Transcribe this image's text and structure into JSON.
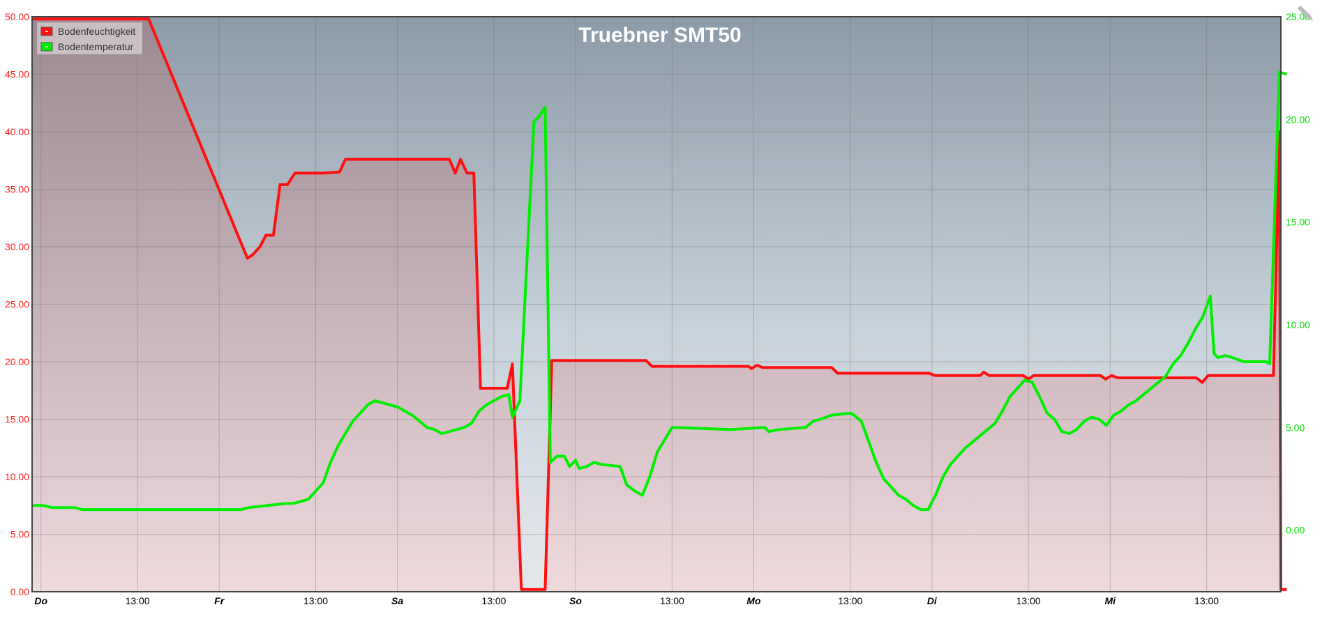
{
  "chart_data": {
    "type": "line",
    "title": "Truebner SMT50",
    "x_ticks": [
      {
        "t": 0,
        "label": "Do",
        "day": true
      },
      {
        "t": 13,
        "label": "13:00",
        "day": false
      },
      {
        "t": 24,
        "label": "Fr",
        "day": true
      },
      {
        "t": 37,
        "label": "13:00",
        "day": false
      },
      {
        "t": 48,
        "label": "Sa",
        "day": true
      },
      {
        "t": 61,
        "label": "13:00",
        "day": false
      },
      {
        "t": 72,
        "label": "So",
        "day": true
      },
      {
        "t": 85,
        "label": "13:00",
        "day": false
      },
      {
        "t": 96,
        "label": "Mo",
        "day": true
      },
      {
        "t": 109,
        "label": "13:00",
        "day": false
      },
      {
        "t": 120,
        "label": "Di",
        "day": true
      },
      {
        "t": 133,
        "label": "13:00",
        "day": false
      },
      {
        "t": 144,
        "label": "Mi",
        "day": true
      },
      {
        "t": 157,
        "label": "13:00",
        "day": false
      }
    ],
    "x_range_hours": [
      -1.2,
      167
    ],
    "y_left": {
      "range": [
        0,
        50
      ],
      "ticks": [
        "0.00",
        "5.00",
        "10.00",
        "15.00",
        "20.00",
        "25.00",
        "30.00",
        "35.00",
        "40.00",
        "45.00",
        "50.00"
      ],
      "color": "#ff2020"
    },
    "y_right": {
      "range": [
        -3,
        25
      ],
      "ticks": [
        "0.00",
        "5.00",
        "10.00",
        "15.00",
        "20.00",
        "25.00"
      ],
      "color": "#00e000"
    },
    "grid": true,
    "legend_position": "top-left",
    "series": [
      {
        "name": "Bodenfeuchtigkeit",
        "axis": "left",
        "color": "#ff1010",
        "points": [
          [
            -1.2,
            49.8
          ],
          [
            14.5,
            49.8
          ],
          [
            27.8,
            29.0
          ],
          [
            28.5,
            29.3
          ],
          [
            29.5,
            30.0
          ],
          [
            30.3,
            31.0
          ],
          [
            31.3,
            31.0
          ],
          [
            32.2,
            35.4
          ],
          [
            33.2,
            35.4
          ],
          [
            34.2,
            36.4
          ],
          [
            38.0,
            36.4
          ],
          [
            40.2,
            36.5
          ],
          [
            41.0,
            37.6
          ],
          [
            55.0,
            37.6
          ],
          [
            55.8,
            36.4
          ],
          [
            56.5,
            37.6
          ],
          [
            57.4,
            36.4
          ],
          [
            58.3,
            36.4
          ],
          [
            59.2,
            17.7
          ],
          [
            62.8,
            17.7
          ],
          [
            63.5,
            19.8
          ],
          [
            64.7,
            0.2
          ],
          [
            67.9,
            0.2
          ],
          [
            68.8,
            20.1
          ],
          [
            81.5,
            20.1
          ],
          [
            82.3,
            19.6
          ],
          [
            95.3,
            19.6
          ],
          [
            95.7,
            19.4
          ],
          [
            96.4,
            19.7
          ],
          [
            97.2,
            19.5
          ],
          [
            106.5,
            19.5
          ],
          [
            107.3,
            19.0
          ],
          [
            119.6,
            19.0
          ],
          [
            120.4,
            18.8
          ],
          [
            126.5,
            18.8
          ],
          [
            127.0,
            19.1
          ],
          [
            127.7,
            18.8
          ],
          [
            132.3,
            18.8
          ],
          [
            133.0,
            18.5
          ],
          [
            133.7,
            18.8
          ],
          [
            142.7,
            18.8
          ],
          [
            143.4,
            18.5
          ],
          [
            144.2,
            18.8
          ],
          [
            145.0,
            18.6
          ],
          [
            155.6,
            18.6
          ],
          [
            156.4,
            18.2
          ],
          [
            157.2,
            18.8
          ],
          [
            166.0,
            18.8
          ],
          [
            166.8,
            40.0
          ],
          [
            167.0,
            0.2
          ],
          [
            167.8,
            0.2
          ]
        ]
      },
      {
        "name": "Bodentemperatur",
        "axis": "right",
        "color": "#00ee00",
        "points": [
          [
            -1.2,
            1.2
          ],
          [
            0.3,
            1.2
          ],
          [
            1.5,
            1.1
          ],
          [
            4.5,
            1.1
          ],
          [
            5.5,
            1.0
          ],
          [
            16.0,
            1.0
          ],
          [
            27.0,
            1.0
          ],
          [
            28.0,
            1.1
          ],
          [
            30.5,
            1.2
          ],
          [
            33.0,
            1.3
          ],
          [
            34.0,
            1.3
          ],
          [
            35.0,
            1.4
          ],
          [
            36.0,
            1.5
          ],
          [
            37.0,
            1.9
          ],
          [
            38.0,
            2.3
          ],
          [
            39.0,
            3.3
          ],
          [
            40.0,
            4.1
          ],
          [
            41.0,
            4.7
          ],
          [
            42.0,
            5.3
          ],
          [
            43.0,
            5.7
          ],
          [
            44.0,
            6.1
          ],
          [
            45.0,
            6.3
          ],
          [
            46.0,
            6.2
          ],
          [
            47.0,
            6.1
          ],
          [
            48.0,
            6.0
          ],
          [
            49.0,
            5.8
          ],
          [
            50.0,
            5.6
          ],
          [
            51.0,
            5.3
          ],
          [
            52.0,
            5.0
          ],
          [
            53.0,
            4.9
          ],
          [
            54.0,
            4.7
          ],
          [
            55.0,
            4.8
          ],
          [
            56.0,
            4.9
          ],
          [
            57.0,
            5.0
          ],
          [
            58.0,
            5.2
          ],
          [
            59.0,
            5.8
          ],
          [
            60.0,
            6.1
          ],
          [
            61.0,
            6.3
          ],
          [
            62.0,
            6.5
          ],
          [
            63.0,
            6.6
          ],
          [
            63.5,
            5.5
          ],
          [
            64.5,
            6.3
          ],
          [
            66.4,
            19.9
          ],
          [
            67.0,
            20.1
          ],
          [
            67.9,
            20.6
          ],
          [
            68.6,
            3.3
          ],
          [
            69.5,
            3.6
          ],
          [
            70.5,
            3.6
          ],
          [
            71.2,
            3.1
          ],
          [
            72.0,
            3.4
          ],
          [
            72.5,
            3.0
          ],
          [
            73.5,
            3.1
          ],
          [
            74.5,
            3.3
          ],
          [
            75.5,
            3.2
          ],
          [
            78.0,
            3.1
          ],
          [
            78.9,
            2.2
          ],
          [
            80.0,
            1.9
          ],
          [
            81.0,
            1.7
          ],
          [
            82.0,
            2.6
          ],
          [
            83.0,
            3.8
          ],
          [
            84.0,
            4.4
          ],
          [
            85.0,
            5.0
          ],
          [
            93.0,
            4.9
          ],
          [
            97.5,
            5.0
          ],
          [
            98.0,
            4.8
          ],
          [
            99.5,
            4.9
          ],
          [
            103.0,
            5.0
          ],
          [
            104.0,
            5.3
          ],
          [
            105.0,
            5.4
          ],
          [
            106.5,
            5.6
          ],
          [
            109.0,
            5.7
          ],
          [
            109.5,
            5.6
          ],
          [
            110.5,
            5.3
          ],
          [
            111.5,
            4.3
          ],
          [
            112.5,
            3.3
          ],
          [
            113.5,
            2.5
          ],
          [
            114.5,
            2.1
          ],
          [
            115.5,
            1.7
          ],
          [
            116.5,
            1.5
          ],
          [
            117.5,
            1.2
          ],
          [
            118.5,
            1.0
          ],
          [
            119.5,
            1.0
          ],
          [
            120.5,
            1.7
          ],
          [
            121.5,
            2.6
          ],
          [
            122.5,
            3.2
          ],
          [
            123.5,
            3.6
          ],
          [
            124.5,
            4.0
          ],
          [
            125.5,
            4.3
          ],
          [
            126.5,
            4.6
          ],
          [
            127.5,
            4.9
          ],
          [
            128.5,
            5.2
          ],
          [
            129.5,
            5.8
          ],
          [
            130.5,
            6.5
          ],
          [
            131.5,
            6.9
          ],
          [
            132.5,
            7.3
          ],
          [
            133.5,
            7.2
          ],
          [
            134.5,
            6.5
          ],
          [
            135.5,
            5.7
          ],
          [
            136.5,
            5.4
          ],
          [
            137.5,
            4.8
          ],
          [
            138.5,
            4.7
          ],
          [
            139.5,
            4.9
          ],
          [
            140.5,
            5.3
          ],
          [
            141.5,
            5.5
          ],
          [
            142.5,
            5.4
          ],
          [
            143.5,
            5.1
          ],
          [
            144.5,
            5.6
          ],
          [
            145.5,
            5.8
          ],
          [
            146.5,
            6.1
          ],
          [
            147.5,
            6.3
          ],
          [
            148.5,
            6.6
          ],
          [
            149.5,
            6.9
          ],
          [
            150.5,
            7.2
          ],
          [
            151.5,
            7.5
          ],
          [
            152.5,
            8.1
          ],
          [
            153.5,
            8.5
          ],
          [
            154.5,
            9.1
          ],
          [
            155.5,
            9.8
          ],
          [
            156.5,
            10.4
          ],
          [
            157.5,
            11.4
          ],
          [
            158.0,
            8.6
          ],
          [
            158.5,
            8.4
          ],
          [
            159.5,
            8.5
          ],
          [
            160.5,
            8.4
          ],
          [
            162.0,
            8.2
          ],
          [
            164.0,
            8.2
          ],
          [
            165.0,
            8.2
          ],
          [
            165.5,
            8.1
          ],
          [
            166.8,
            22.3
          ],
          [
            167.8,
            22.2
          ]
        ]
      }
    ]
  }
}
